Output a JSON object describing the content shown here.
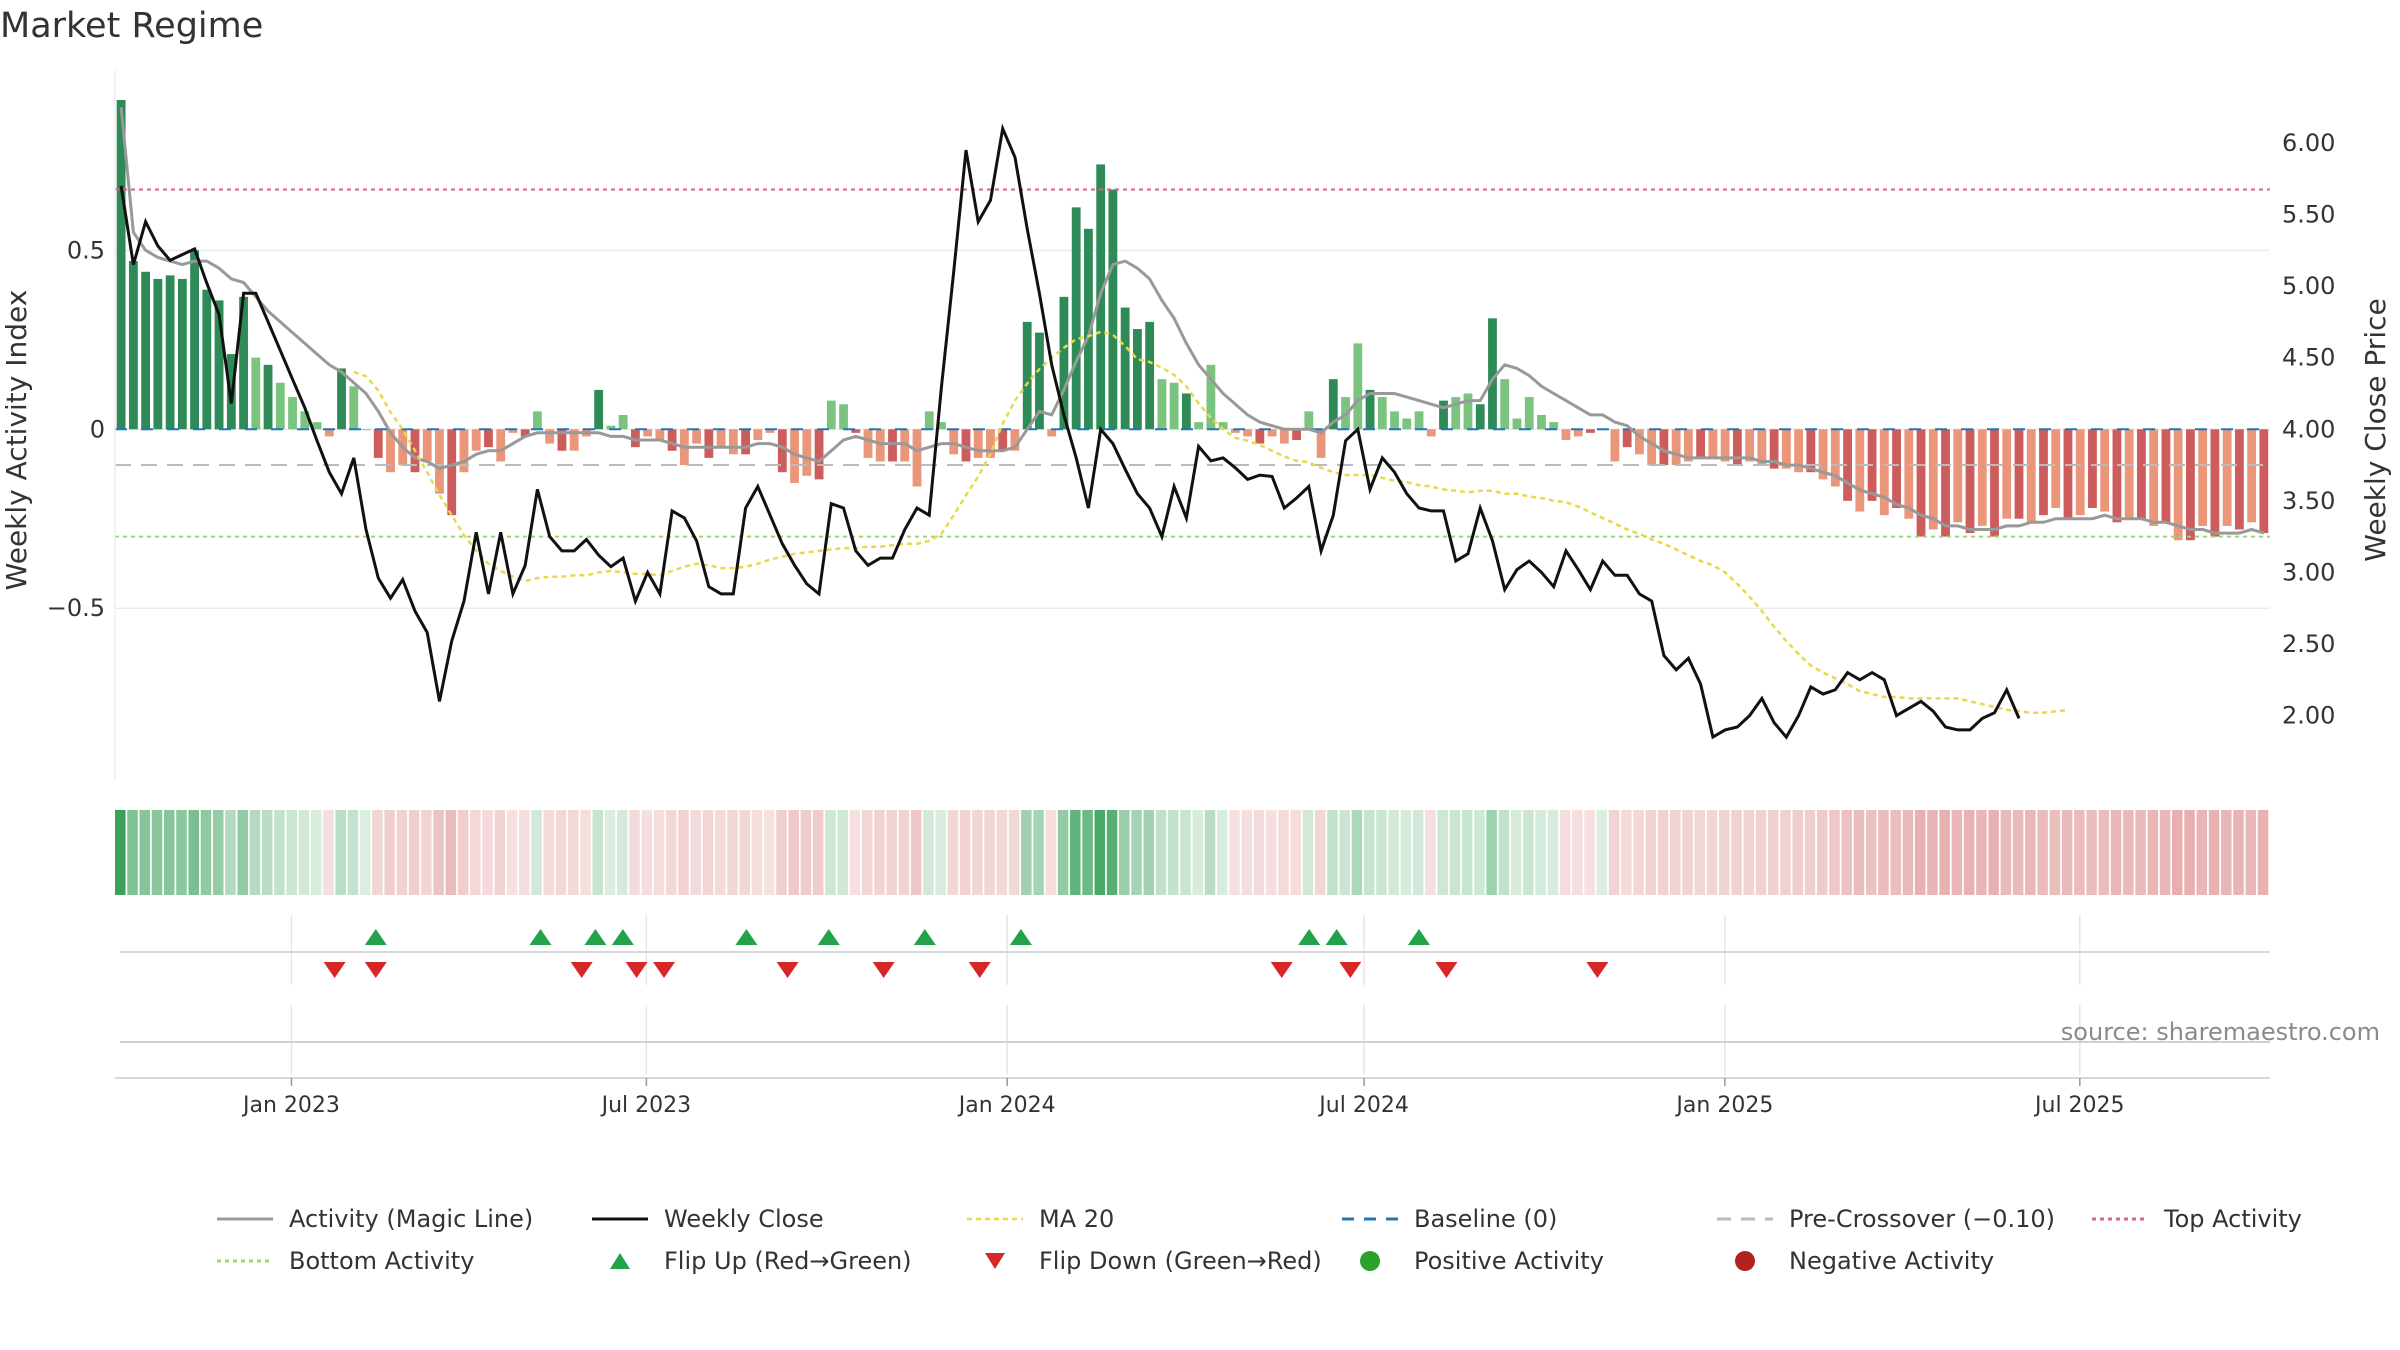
{
  "title": "Market Regime",
  "source": "source: sharemaestro.com",
  "chart_data": {
    "type": "bar",
    "title": "Market Regime",
    "ylabel_left": "Weekly Activity Index",
    "ylabel_right": "Weekly Close Price",
    "ylim_left": [
      -0.98,
      0.92
    ],
    "ylim_right": [
      1.55,
      6.3
    ],
    "left_ticks": [
      {
        "v": 0.5,
        "label": "0.5"
      },
      {
        "v": 0,
        "label": "0"
      },
      {
        "v": -0.5,
        "label": "−0.5"
      }
    ],
    "right_ticks": [
      {
        "v": 6.0,
        "label": "6.00"
      },
      {
        "v": 5.5,
        "label": "5.50"
      },
      {
        "v": 5.0,
        "label": "5.00"
      },
      {
        "v": 4.5,
        "label": "4.50"
      },
      {
        "v": 4.0,
        "label": "4.00"
      },
      {
        "v": 3.5,
        "label": "3.50"
      },
      {
        "v": 3.0,
        "label": "3.00"
      },
      {
        "v": 2.5,
        "label": "2.50"
      },
      {
        "v": 2.0,
        "label": "2.00"
      }
    ],
    "x_start": "2022-10-03",
    "x_end": "2025-10-06",
    "x_ticks": [
      {
        "date": "2023-01-01",
        "label": "Jan 2023"
      },
      {
        "date": "2023-07-01",
        "label": "Jul 2023"
      },
      {
        "date": "2024-01-01",
        "label": "Jan 2024"
      },
      {
        "date": "2024-07-01",
        "label": "Jul 2024"
      },
      {
        "date": "2025-01-01",
        "label": "Jan 2025"
      },
      {
        "date": "2025-07-01",
        "label": "Jul 2025"
      }
    ],
    "reference_lines": {
      "baseline": 0,
      "pre_crossover": -0.1,
      "top_activity": 0.67,
      "bottom_activity": -0.3
    },
    "colors": {
      "pos_strong": "#2e8b57",
      "pos_light": "#7bc47f",
      "neg_strong": "#cd5c5c",
      "neg_light": "#e9967a",
      "magic_line": "#999999",
      "close": "#111111",
      "ma20": "#e8d84a",
      "baseline": "#1f77b4",
      "pre_crossover": "#bbbbbb",
      "top": "#d95f8a",
      "bottom": "#9bd770",
      "flip_up": "#22a34a",
      "flip_down": "#d62728",
      "positive_dot": "#2ca02c",
      "negative_dot": "#b22222"
    },
    "activity": [
      0.92,
      0.47,
      0.44,
      0.42,
      0.43,
      0.42,
      0.5,
      0.39,
      0.36,
      0.21,
      0.37,
      0.2,
      0.18,
      0.13,
      0.09,
      0.05,
      0.02,
      -0.02,
      0.17,
      0.12,
      0.0,
      -0.08,
      -0.12,
      -0.1,
      -0.12,
      -0.09,
      -0.18,
      -0.24,
      -0.12,
      -0.06,
      -0.05,
      -0.09,
      -0.01,
      -0.02,
      0.05,
      -0.04,
      -0.06,
      -0.06,
      -0.02,
      0.11,
      0.01,
      0.04,
      -0.05,
      -0.02,
      -0.03,
      -0.06,
      -0.1,
      -0.04,
      -0.08,
      -0.05,
      -0.07,
      -0.07,
      -0.03,
      -0.01,
      -0.12,
      -0.15,
      -0.13,
      -0.14,
      0.08,
      0.07,
      -0.01,
      -0.08,
      -0.09,
      -0.09,
      -0.09,
      -0.16,
      0.05,
      0.02,
      -0.07,
      -0.09,
      -0.08,
      -0.08,
      -0.06,
      -0.06,
      0.3,
      0.27,
      -0.02,
      0.37,
      0.62,
      0.56,
      0.74,
      0.67,
      0.34,
      0.28,
      0.3,
      0.14,
      0.13,
      0.1,
      0.02,
      0.18,
      0.02,
      -0.01,
      -0.02,
      -0.04,
      -0.02,
      -0.04,
      -0.03,
      0.05,
      -0.08,
      0.14,
      0.09,
      0.24,
      0.11,
      0.09,
      0.05,
      0.03,
      0.05,
      -0.02,
      0.08,
      0.09,
      0.1,
      0.07,
      0.31,
      0.14,
      0.03,
      0.09,
      0.04,
      0.02,
      -0.03,
      -0.02,
      -0.01,
      0.0,
      -0.09,
      -0.05,
      -0.07,
      -0.1,
      -0.1,
      -0.1,
      -0.09,
      -0.08,
      -0.08,
      -0.09,
      -0.1,
      -0.09,
      -0.1,
      -0.11,
      -0.11,
      -0.12,
      -0.12,
      -0.14,
      -0.16,
      -0.2,
      -0.23,
      -0.2,
      -0.24,
      -0.22,
      -0.25,
      -0.3,
      -0.28,
      -0.3,
      -0.26,
      -0.29,
      -0.27,
      -0.3,
      -0.25,
      -0.25,
      -0.26,
      -0.24,
      -0.22,
      -0.25,
      -0.24,
      -0.22,
      -0.23,
      -0.26,
      -0.25,
      -0.25,
      -0.27,
      -0.26,
      -0.31,
      -0.31,
      -0.27,
      -0.3,
      -0.27,
      -0.28,
      -0.26,
      -0.29
    ],
    "magic_line": [
      0.9,
      0.55,
      0.5,
      0.48,
      0.47,
      0.46,
      0.47,
      0.47,
      0.45,
      0.42,
      0.41,
      0.37,
      0.33,
      0.3,
      0.27,
      0.24,
      0.21,
      0.18,
      0.16,
      0.13,
      0.1,
      0.05,
      -0.01,
      -0.05,
      -0.08,
      -0.09,
      -0.11,
      -0.1,
      -0.09,
      -0.07,
      -0.06,
      -0.06,
      -0.04,
      -0.02,
      -0.01,
      -0.01,
      -0.01,
      -0.01,
      -0.01,
      -0.01,
      -0.02,
      -0.02,
      -0.03,
      -0.03,
      -0.03,
      -0.04,
      -0.05,
      -0.05,
      -0.05,
      -0.05,
      -0.05,
      -0.05,
      -0.04,
      -0.04,
      -0.05,
      -0.07,
      -0.08,
      -0.09,
      -0.06,
      -0.03,
      -0.02,
      -0.03,
      -0.04,
      -0.04,
      -0.04,
      -0.06,
      -0.05,
      -0.04,
      -0.04,
      -0.05,
      -0.06,
      -0.06,
      -0.06,
      -0.05,
      0.0,
      0.05,
      0.04,
      0.11,
      0.19,
      0.26,
      0.38,
      0.46,
      0.47,
      0.45,
      0.42,
      0.36,
      0.31,
      0.24,
      0.18,
      0.14,
      0.1,
      0.07,
      0.04,
      0.02,
      0.01,
      0.0,
      0.0,
      0.0,
      -0.01,
      0.02,
      0.04,
      0.08,
      0.1,
      0.1,
      0.1,
      0.09,
      0.08,
      0.07,
      0.06,
      0.07,
      0.08,
      0.08,
      0.14,
      0.18,
      0.17,
      0.15,
      0.12,
      0.1,
      0.08,
      0.06,
      0.04,
      0.04,
      0.02,
      0.01,
      -0.02,
      -0.04,
      -0.06,
      -0.07,
      -0.08,
      -0.08,
      -0.08,
      -0.08,
      -0.08,
      -0.08,
      -0.09,
      -0.09,
      -0.1,
      -0.1,
      -0.11,
      -0.12,
      -0.13,
      -0.15,
      -0.17,
      -0.18,
      -0.19,
      -0.21,
      -0.22,
      -0.24,
      -0.25,
      -0.27,
      -0.27,
      -0.28,
      -0.28,
      -0.28,
      -0.27,
      -0.27,
      -0.26,
      -0.26,
      -0.25,
      -0.25,
      -0.25,
      -0.25,
      -0.24,
      -0.25,
      -0.25,
      -0.25,
      -0.26,
      -0.26,
      -0.27,
      -0.28,
      -0.28,
      -0.29,
      -0.29,
      -0.29,
      -0.28,
      -0.29
    ],
    "close": [
      5.7,
      5.15,
      5.45,
      5.28,
      5.18,
      5.22,
      5.26,
      5.02,
      4.8,
      4.18,
      4.95,
      4.95,
      4.75,
      4.55,
      4.35,
      4.15,
      3.92,
      3.7,
      3.55,
      3.8,
      3.3,
      2.96,
      2.82,
      2.95,
      2.73,
      2.58,
      2.1,
      2.52,
      2.8,
      3.28,
      2.85,
      3.28,
      2.85,
      3.05,
      3.58,
      3.25,
      3.15,
      3.15,
      3.23,
      3.12,
      3.04,
      3.1,
      2.8,
      3.0,
      2.85,
      3.43,
      3.38,
      3.22,
      2.9,
      2.85,
      2.85,
      3.45,
      3.6,
      3.4,
      3.2,
      3.05,
      2.92,
      2.85,
      3.48,
      3.45,
      3.15,
      3.05,
      3.1,
      3.1,
      3.3,
      3.45,
      3.4,
      4.3,
      5.1,
      5.95,
      5.45,
      5.6,
      6.1,
      5.9,
      5.4,
      4.95,
      4.45,
      4.1,
      3.8,
      3.45,
      4.0,
      3.9,
      3.72,
      3.55,
      3.45,
      3.25,
      3.6,
      3.38,
      3.88,
      3.78,
      3.8,
      3.73,
      3.65,
      3.68,
      3.67,
      3.45,
      3.52,
      3.6,
      3.15,
      3.4,
      3.92,
      4.0,
      3.58,
      3.8,
      3.7,
      3.55,
      3.45,
      3.43,
      3.43,
      3.08,
      3.13,
      3.45,
      3.22,
      2.88,
      3.02,
      3.08,
      3.0,
      2.9,
      3.15,
      3.02,
      2.88,
      3.08,
      2.98,
      2.98,
      2.85,
      2.8,
      2.42,
      2.32,
      2.4,
      2.22,
      1.85,
      1.9,
      1.92,
      2.0,
      2.12,
      1.95,
      1.85,
      2.0,
      2.2,
      2.15,
      2.18,
      2.3,
      2.25,
      2.3,
      2.25,
      2.0,
      2.05,
      2.1,
      2.03,
      1.92,
      1.9,
      1.9,
      1.98,
      2.02,
      2.18,
      1.98
    ],
    "ma20": [
      null,
      null,
      null,
      null,
      null,
      null,
      null,
      null,
      null,
      null,
      null,
      null,
      null,
      null,
      null,
      null,
      null,
      null,
      null,
      4.4,
      4.37,
      4.27,
      4.12,
      4.0,
      3.85,
      3.7,
      3.54,
      3.4,
      3.26,
      3.15,
      3.06,
      3.01,
      2.97,
      2.94,
      2.96,
      2.97,
      2.97,
      2.98,
      2.98,
      3.0,
      3.01,
      3.0,
      2.99,
      2.99,
      2.98,
      3.01,
      3.04,
      3.06,
      3.05,
      3.03,
      3.03,
      3.04,
      3.06,
      3.09,
      3.11,
      3.13,
      3.14,
      3.15,
      3.16,
      3.17,
      3.17,
      3.18,
      3.18,
      3.19,
      3.2,
      3.2,
      3.22,
      3.27,
      3.4,
      3.54,
      3.67,
      3.83,
      4.04,
      4.2,
      4.32,
      4.42,
      4.5,
      4.57,
      4.63,
      4.65,
      4.68,
      4.66,
      4.58,
      4.49,
      4.47,
      4.43,
      4.38,
      4.3,
      4.18,
      4.08,
      4.0,
      3.94,
      3.92,
      3.89,
      3.85,
      3.81,
      3.78,
      3.77,
      3.73,
      3.7,
      3.68,
      3.68,
      3.68,
      3.66,
      3.64,
      3.63,
      3.61,
      3.6,
      3.58,
      3.57,
      3.56,
      3.57,
      3.57,
      3.55,
      3.55,
      3.53,
      3.52,
      3.5,
      3.49,
      3.46,
      3.42,
      3.38,
      3.34,
      3.3,
      3.27,
      3.23,
      3.2,
      3.16,
      3.12,
      3.08,
      3.05,
      3.0,
      2.92,
      2.83,
      2.73,
      2.62,
      2.52,
      2.43,
      2.35,
      2.3,
      2.26,
      2.22,
      2.17,
      2.15,
      2.13,
      2.13,
      2.12,
      2.12,
      2.12,
      2.12,
      2.12,
      2.1,
      2.08,
      2.06,
      2.04,
      2.03,
      2.02,
      2.02,
      2.03,
      2.04
    ],
    "flip_up": [
      "2023-02-13",
      "2023-05-08",
      "2023-06-05",
      "2023-06-19",
      "2023-08-21",
      "2023-10-02",
      "2023-11-20",
      "2024-01-08",
      "2024-06-03",
      "2024-06-17",
      "2024-07-29"
    ],
    "flip_down": [
      "2023-01-23",
      "2023-02-13",
      "2023-05-29",
      "2023-06-26",
      "2023-07-10",
      "2023-09-11",
      "2023-10-30",
      "2023-12-18",
      "2024-05-20",
      "2024-06-24",
      "2024-08-12",
      "2024-10-28"
    ]
  },
  "legend": [
    {
      "kind": "magic",
      "label": "Activity (Magic Line)"
    },
    {
      "kind": "close",
      "label": "Weekly Close"
    },
    {
      "kind": "ma20",
      "label": "MA 20"
    },
    {
      "kind": "baseline",
      "label": "Baseline (0)"
    },
    {
      "kind": "precross",
      "label": "Pre-Crossover (−0.10)"
    },
    {
      "kind": "top",
      "label": "Top Activity"
    },
    {
      "kind": "bottom",
      "label": "Bottom Activity"
    },
    {
      "kind": "flipup",
      "label": "Flip Up (Red→Green)"
    },
    {
      "kind": "flipdown",
      "label": "Flip Down (Green→Red)"
    },
    {
      "kind": "posdot",
      "label": "Positive Activity"
    },
    {
      "kind": "negdot",
      "label": "Negative Activity"
    }
  ]
}
